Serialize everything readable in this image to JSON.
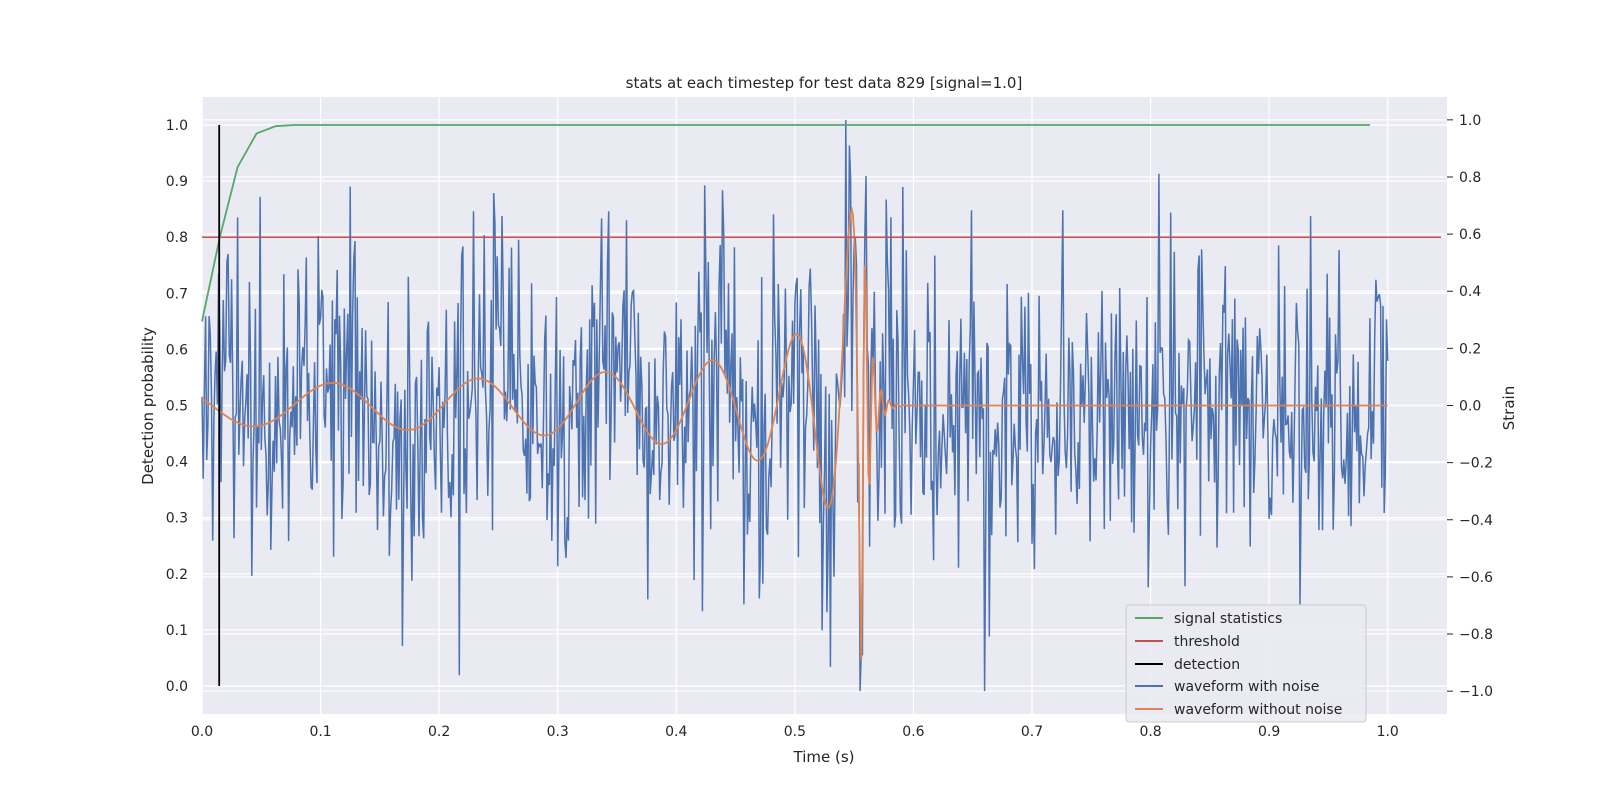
{
  "chart_data": {
    "type": "line",
    "title": "stats at each timestep for test data 829 [signal=1.0]",
    "xlabel": "Time (s)",
    "ylabel_left": "Detection probability",
    "ylabel_right": "Strain",
    "xlim": [
      0.0,
      1.05
    ],
    "ylim_left": [
      -0.05,
      1.05
    ],
    "ylim_right": [
      -1.08,
      1.08
    ],
    "xticks": [
      "0.0",
      "0.1",
      "0.2",
      "0.3",
      "0.4",
      "0.5",
      "0.6",
      "0.7",
      "0.8",
      "0.9",
      "1.0"
    ],
    "yticks_left": [
      "0.0",
      "0.1",
      "0.2",
      "0.3",
      "0.4",
      "0.5",
      "0.6",
      "0.7",
      "0.8",
      "0.9",
      "1.0"
    ],
    "yticks_right": [
      "−1.0",
      "−0.8",
      "−0.6",
      "−0.4",
      "−0.2",
      "0.0",
      "0.2",
      "0.4",
      "0.6",
      "0.8",
      "1.0"
    ],
    "grid": true,
    "legend_position": "lower-right",
    "colors": {
      "signal_statistics": "#55a868",
      "threshold": "#c44e52",
      "detection": "#000000",
      "waveform_with_noise": "#4c72b0",
      "waveform_without_noise": "#dd8452",
      "background": "#eaeaf2",
      "grid": "#ffffff"
    },
    "series": [
      {
        "name": "signal statistics",
        "axis": "left",
        "x": [
          0.0,
          0.015,
          0.03,
          0.046,
          0.062,
          0.078,
          0.1,
          0.2,
          0.4,
          0.6,
          0.8,
          0.985
        ],
        "y": [
          0.65,
          0.8,
          0.925,
          0.985,
          0.998,
          1.0,
          1.0,
          1.0,
          1.0,
          1.0,
          1.0,
          1.0
        ]
      },
      {
        "name": "threshold",
        "axis": "left",
        "x": [
          0.0,
          1.045
        ],
        "y": [
          0.8,
          0.8
        ]
      },
      {
        "name": "detection",
        "axis": "left",
        "x": [
          0.0145,
          0.0145
        ],
        "y": [
          0.0,
          1.0
        ]
      },
      {
        "name": "waveform with noise",
        "axis": "right",
        "x_range": [
          0.0,
          1.0
        ],
        "description": "dense noisy strain series, approx. 1000 samples, amplitude mostly within -0.8..0.9, global max 1.0 near t=0.543, min -1.0 near t=0.66"
      },
      {
        "name": "waveform without noise",
        "axis": "right",
        "x_range": [
          0.0,
          1.0
        ],
        "description": "chirp: oscillation amplitude ~0.07 rising to ~0.94 at t≈0.555 and ~-0.9 at t≈0.558, then ringdown to 0 after t≈0.575"
      }
    ]
  }
}
